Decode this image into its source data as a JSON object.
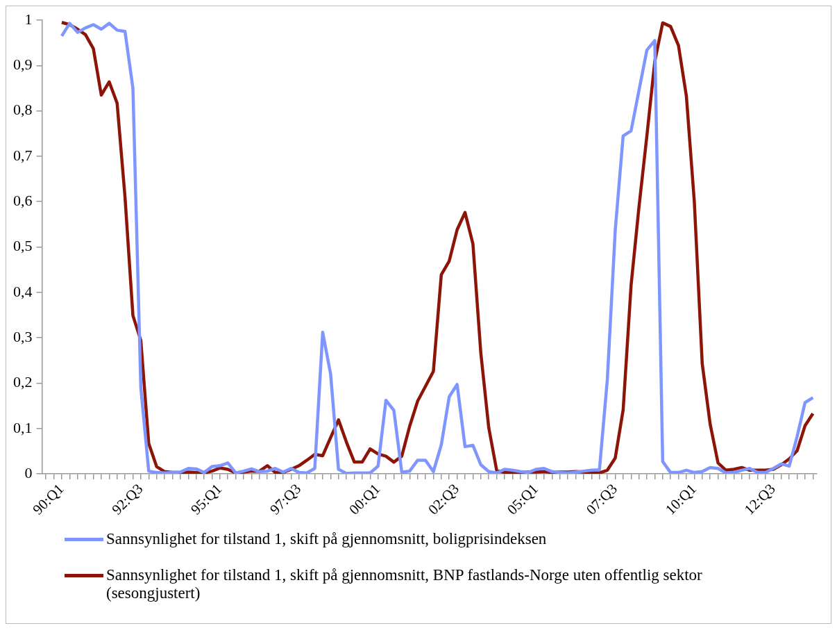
{
  "chart_data": {
    "type": "line",
    "legend": "bottom",
    "grid": false,
    "marker": "none",
    "line_style": "solid",
    "categories": [
      null,
      null,
      "90:Q1",
      null,
      null,
      null,
      null,
      null,
      null,
      null,
      null,
      null,
      "92:Q3",
      null,
      null,
      null,
      null,
      null,
      null,
      null,
      null,
      null,
      "95:Q1",
      null,
      null,
      null,
      null,
      null,
      null,
      null,
      null,
      null,
      "97:Q3",
      null,
      null,
      null,
      null,
      null,
      null,
      null,
      null,
      null,
      "00:Q1",
      null,
      null,
      null,
      null,
      null,
      null,
      null,
      null,
      null,
      "02:Q3",
      null,
      null,
      null,
      null,
      null,
      null,
      null,
      null,
      null,
      "05:Q1",
      null,
      null,
      null,
      null,
      null,
      null,
      null,
      null,
      null,
      "07:Q3",
      null,
      null,
      null,
      null,
      null,
      null,
      null,
      null,
      null,
      "10:Q1",
      null,
      null,
      null,
      null,
      null,
      null,
      null,
      null,
      null,
      "12:Q3",
      null,
      null,
      null,
      null,
      null
    ],
    "ylim": [
      0,
      1
    ],
    "yticks": [
      0,
      {
        "value": 0.1,
        "label": "0,1"
      },
      {
        "value": 0.2,
        "label": "0,2"
      },
      {
        "value": 0.3,
        "label": "0,3"
      },
      {
        "value": 0.4,
        "label": "0,4"
      },
      {
        "value": 0.5,
        "label": "0,5"
      },
      {
        "value": 0.6,
        "label": "0,6"
      },
      {
        "value": 0.7,
        "label": "0,7"
      },
      {
        "value": 0.8,
        "label": "0,8"
      },
      {
        "value": 0.9,
        "label": "0,9"
      },
      1
    ],
    "series": [
      {
        "name": "Sannsynlighet for tilstand 1, skift på gjennomsnitt, boligprisindeksen",
        "color": "#7f96ff",
        "values": [
          null,
          null,
          0.965,
          0.993,
          0.973,
          0.983,
          0.99,
          0.98,
          0.993,
          0.978,
          0.975,
          0.85,
          0.19,
          0.006,
          0.003,
          0.002,
          0.003,
          0.004,
          0.012,
          0.011,
          0.003,
          0.016,
          0.018,
          0.024,
          0.002,
          0.006,
          0.011,
          0.005,
          0.006,
          0.012,
          0.004,
          0.012,
          0.003,
          0.002,
          0.012,
          0.312,
          0.22,
          0.01,
          0.001,
          0.002,
          0.002,
          0.002,
          0.017,
          0.162,
          0.14,
          0.004,
          0.006,
          0.03,
          0.03,
          0.005,
          0.064,
          0.17,
          0.197,
          0.06,
          0.063,
          0.02,
          0.005,
          0.002,
          0.01,
          0.008,
          0.005,
          0.003,
          0.01,
          0.012,
          0.005,
          0.003,
          0.002,
          0.004,
          0.006,
          0.008,
          0.009,
          0.208,
          0.537,
          0.745,
          0.756,
          0.845,
          0.934,
          0.955,
          0.027,
          0.003,
          0.003,
          0.008,
          0.003,
          0.005,
          0.014,
          0.012,
          0.002,
          0.003,
          0.008,
          0.012,
          0.003,
          0.003,
          0.012,
          0.022,
          0.017,
          0.082,
          0.157,
          0.168
        ]
      },
      {
        "name": "Sannsynlighet for tilstand 1, skift på gjennomsnitt, BNP fastlands-Norge uten offentlig sektor (sesongjustert)",
        "color": "#8c1508",
        "values": [
          null,
          null,
          0.995,
          0.99,
          0.98,
          0.968,
          0.937,
          0.835,
          0.864,
          0.817,
          0.61,
          0.349,
          0.294,
          0.067,
          0.016,
          0.005,
          0.003,
          0.003,
          0.004,
          0.003,
          0.002,
          0.006,
          0.013,
          0.01,
          0.002,
          0.004,
          0.006,
          0.006,
          0.018,
          0.003,
          0.003,
          0.01,
          0.018,
          0.03,
          0.043,
          0.04,
          0.08,
          0.119,
          0.07,
          0.026,
          0.026,
          0.055,
          0.044,
          0.039,
          0.026,
          0.039,
          0.105,
          0.16,
          0.193,
          0.226,
          0.439,
          0.469,
          0.538,
          0.576,
          0.507,
          0.266,
          0.102,
          0.008,
          0.003,
          0.003,
          0.003,
          0.004,
          0.004,
          0.005,
          0.003,
          0.004,
          0.004,
          0.005,
          0.004,
          0.003,
          0.002,
          0.008,
          0.035,
          0.141,
          0.415,
          0.588,
          0.745,
          0.909,
          0.994,
          0.986,
          0.944,
          0.832,
          0.6,
          0.243,
          0.11,
          0.024,
          0.008,
          0.01,
          0.014,
          0.008,
          0.008,
          0.008,
          0.01,
          0.02,
          0.033,
          0.051,
          0.106,
          0.133
        ]
      }
    ]
  }
}
